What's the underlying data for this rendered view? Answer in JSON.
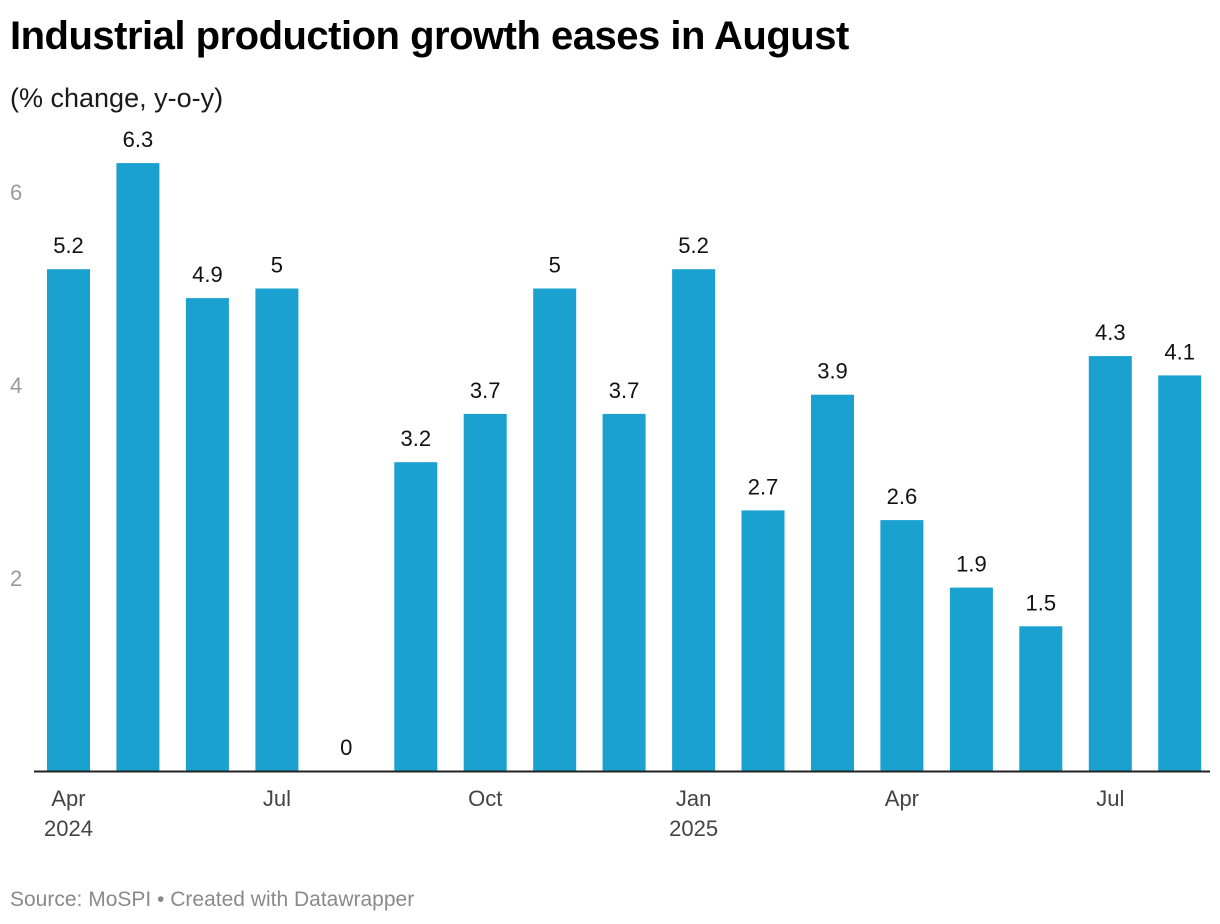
{
  "header": {
    "title": "Industrial production growth eases in August",
    "subtitle": "(% change, y-o-y)"
  },
  "footer": {
    "source_label": "Source: MoSPI",
    "separator": "•",
    "credit": "Created with Datawrapper",
    "text": "Source: MoSPI • Created with Datawrapper"
  },
  "colors": {
    "bar": "#1aa1cf",
    "baseline": "#222222",
    "tick": "#9a9a9a"
  },
  "chart_data": {
    "type": "bar",
    "title": "Industrial production growth eases in August",
    "subtitle": "(% change, y-o-y)",
    "ylabel": "% change, y-o-y",
    "xlabel": "",
    "ylim": [
      0,
      6.6
    ],
    "yticks": [
      2,
      4,
      6
    ],
    "grid": false,
    "categories": [
      "Apr 2024",
      "May 2024",
      "Jun 2024",
      "Jul 2024",
      "Aug 2024",
      "Sep 2024",
      "Oct 2024",
      "Nov 2024",
      "Dec 2024",
      "Jan 2025",
      "Feb 2025",
      "Mar 2025",
      "Apr 2025",
      "May 2025",
      "Jun 2025",
      "Jul 2025",
      "Aug 2025"
    ],
    "values": [
      5.2,
      6.3,
      4.9,
      5,
      0,
      3.2,
      3.7,
      5,
      3.7,
      5.2,
      2.7,
      3.9,
      2.6,
      1.9,
      1.5,
      4.3,
      4.1
    ],
    "value_labels": [
      "5.2",
      "6.3",
      "4.9",
      "5",
      "0",
      "3.2",
      "3.7",
      "5",
      "3.7",
      "5.2",
      "2.7",
      "3.9",
      "2.6",
      "1.9",
      "1.5",
      "4.3",
      "4.1"
    ],
    "x_tick_labels": [
      {
        "index": 0,
        "lines": [
          "Apr",
          "2024"
        ]
      },
      {
        "index": 3,
        "lines": [
          "Jul"
        ]
      },
      {
        "index": 6,
        "lines": [
          "Oct"
        ]
      },
      {
        "index": 9,
        "lines": [
          "Jan",
          "2025"
        ]
      },
      {
        "index": 12,
        "lines": [
          "Apr"
        ]
      },
      {
        "index": 15,
        "lines": [
          "Jul"
        ]
      }
    ]
  }
}
